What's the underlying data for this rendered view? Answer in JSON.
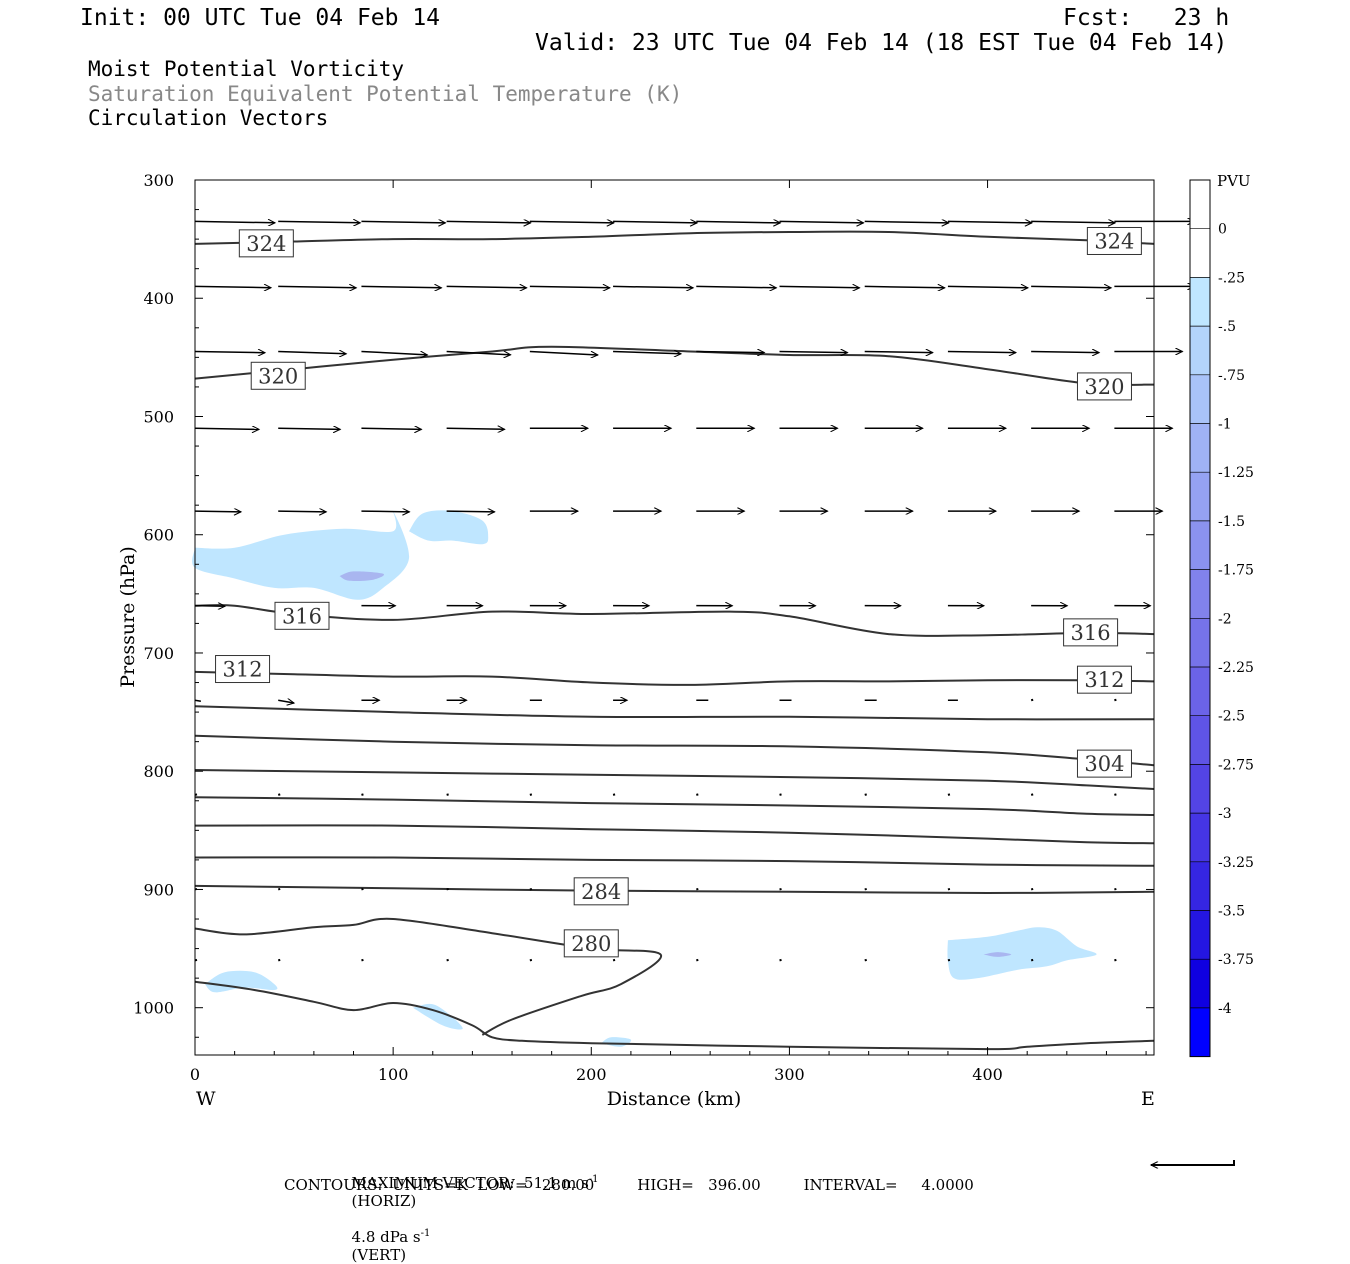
{
  "header": {
    "init": "Init: 00 UTC Tue 04 Feb 14",
    "fcst": "Fcst:   23 h",
    "valid": "Valid: 23 UTC Tue 04 Feb 14 (18 EST Tue 04 Feb 14)",
    "field1": "Moist Potential Vorticity",
    "field2": "Saturation Equivalent Potential Temperature (K)",
    "field3": "Circulation Vectors"
  },
  "colors": {
    "field2_text": "#888888",
    "contour": "#333333",
    "pv_fill_light": "#bfe6ff",
    "pv_fill_mid": "#a9b6f0"
  },
  "chart_data": {
    "type": "contour",
    "xlabel": "Distance (km)",
    "ylabel": "Pressure (hPa)",
    "xlim": [
      0,
      484
    ],
    "ylim": [
      300,
      1040
    ],
    "y_scale": "linear",
    "y_inverted": true,
    "x_ticks": [
      0,
      100,
      200,
      300,
      400
    ],
    "y_ticks": [
      300,
      400,
      500,
      600,
      700,
      800,
      900,
      1000
    ],
    "x_end_labels": {
      "left": "W",
      "right": "E"
    },
    "contour_labels": [
      {
        "text": "324",
        "x": 36,
        "p": 354
      },
      {
        "text": "324",
        "x": 464,
        "p": 352
      },
      {
        "text": "320",
        "x": 42,
        "p": 466
      },
      {
        "text": "320",
        "x": 459,
        "p": 475
      },
      {
        "text": "316",
        "x": 54,
        "p": 669
      },
      {
        "text": "316",
        "x": 452,
        "p": 683
      },
      {
        "text": "312",
        "x": 24,
        "p": 714
      },
      {
        "text": "312",
        "x": 459,
        "p": 723
      },
      {
        "text": "304",
        "x": 459,
        "p": 794
      },
      {
        "text": "284",
        "x": 205,
        "p": 902
      },
      {
        "text": "280",
        "x": 200,
        "p": 946
      }
    ],
    "contours": [
      {
        "level": 324,
        "points": [
          [
            0,
            354
          ],
          [
            50,
            352
          ],
          [
            100,
            350
          ],
          [
            150,
            350
          ],
          [
            200,
            348
          ],
          [
            250,
            345
          ],
          [
            300,
            344
          ],
          [
            350,
            344
          ],
          [
            400,
            348
          ],
          [
            450,
            351
          ],
          [
            484,
            354
          ]
        ]
      },
      {
        "level": 320,
        "points": [
          [
            0,
            468
          ],
          [
            50,
            460
          ],
          [
            100,
            452
          ],
          [
            150,
            445
          ],
          [
            180,
            441
          ],
          [
            250,
            445
          ],
          [
            300,
            448
          ],
          [
            350,
            449
          ],
          [
            400,
            460
          ],
          [
            450,
            472
          ],
          [
            484,
            473
          ]
        ]
      },
      {
        "level": 316,
        "points": [
          [
            0,
            660
          ],
          [
            20,
            660
          ],
          [
            50,
            667
          ],
          [
            100,
            672
          ],
          [
            150,
            665
          ],
          [
            200,
            667
          ],
          [
            270,
            665
          ],
          [
            300,
            669
          ],
          [
            350,
            684
          ],
          [
            400,
            685
          ],
          [
            450,
            683
          ],
          [
            484,
            684
          ]
        ]
      },
      {
        "level": 312,
        "points": [
          [
            0,
            716
          ],
          [
            50,
            718
          ],
          [
            100,
            720
          ],
          [
            150,
            720
          ],
          [
            200,
            725
          ],
          [
            250,
            727
          ],
          [
            300,
            724
          ],
          [
            350,
            724
          ],
          [
            400,
            723
          ],
          [
            450,
            723
          ],
          [
            484,
            724
          ]
        ]
      },
      {
        "level": 308,
        "points": [
          [
            0,
            745
          ],
          [
            100,
            750
          ],
          [
            200,
            754
          ],
          [
            300,
            754
          ],
          [
            400,
            756
          ],
          [
            484,
            756
          ]
        ]
      },
      {
        "level": 304,
        "points": [
          [
            0,
            770
          ],
          [
            100,
            775
          ],
          [
            200,
            778
          ],
          [
            300,
            779
          ],
          [
            400,
            784
          ],
          [
            450,
            790
          ],
          [
            484,
            795
          ]
        ]
      },
      {
        "level": 300,
        "points": [
          [
            0,
            799
          ],
          [
            100,
            801
          ],
          [
            200,
            803
          ],
          [
            300,
            805
          ],
          [
            400,
            808
          ],
          [
            450,
            812
          ],
          [
            484,
            815
          ]
        ]
      },
      {
        "level": 296,
        "points": [
          [
            0,
            822
          ],
          [
            100,
            824
          ],
          [
            200,
            827
          ],
          [
            300,
            829
          ],
          [
            400,
            832
          ],
          [
            450,
            836
          ],
          [
            484,
            837
          ]
        ]
      },
      {
        "level": 292,
        "points": [
          [
            0,
            846
          ],
          [
            100,
            846
          ],
          [
            200,
            849
          ],
          [
            300,
            852
          ],
          [
            400,
            857
          ],
          [
            450,
            860
          ],
          [
            484,
            861
          ]
        ]
      },
      {
        "level": 288,
        "points": [
          [
            0,
            873
          ],
          [
            100,
            873
          ],
          [
            200,
            875
          ],
          [
            300,
            876
          ],
          [
            400,
            879
          ],
          [
            484,
            880
          ]
        ]
      },
      {
        "level": 284,
        "points": [
          [
            0,
            897
          ],
          [
            100,
            899
          ],
          [
            200,
            901
          ],
          [
            300,
            902
          ],
          [
            400,
            903
          ],
          [
            484,
            902
          ]
        ]
      },
      {
        "level": 280,
        "points": [
          [
            0,
            933
          ],
          [
            25,
            938
          ],
          [
            60,
            932
          ],
          [
            80,
            930
          ],
          [
            100,
            925
          ],
          [
            150,
            937
          ],
          [
            200,
            950
          ],
          [
            235,
            955
          ],
          [
            215,
            980
          ],
          [
            195,
            990
          ],
          [
            160,
            1010
          ],
          [
            145,
            1023
          ]
        ]
      },
      {
        "level": 280,
        "points": [
          [
            0,
            978
          ],
          [
            30,
            985
          ],
          [
            60,
            995
          ],
          [
            80,
            1002
          ],
          [
            100,
            996
          ],
          [
            120,
            1002
          ],
          [
            140,
            1015
          ],
          [
            150,
            1025
          ],
          [
            165,
            1028
          ],
          [
            200,
            1030
          ],
          [
            300,
            1033
          ],
          [
            400,
            1035
          ],
          [
            420,
            1033
          ],
          [
            450,
            1030
          ],
          [
            484,
            1028
          ]
        ]
      }
    ],
    "pv_regions": [
      {
        "level": "-0.25",
        "points": [
          [
            0,
            611
          ],
          [
            20,
            611
          ],
          [
            45,
            600
          ],
          [
            75,
            595
          ],
          [
            100,
            597
          ],
          [
            100,
            580
          ],
          [
            108,
            620
          ],
          [
            95,
            645
          ],
          [
            82,
            655
          ],
          [
            60,
            645
          ],
          [
            40,
            645
          ],
          [
            20,
            637
          ],
          [
            0,
            628
          ]
        ]
      },
      {
        "level": "-0.25",
        "points": [
          [
            108,
            597
          ],
          [
            115,
            582
          ],
          [
            130,
            580
          ],
          [
            145,
            588
          ],
          [
            148,
            602
          ],
          [
            145,
            608
          ],
          [
            130,
            605
          ],
          [
            118,
            605
          ]
        ]
      },
      {
        "level": "-0.5",
        "points": [
          [
            73,
            635
          ],
          [
            80,
            631
          ],
          [
            95,
            633
          ],
          [
            90,
            638
          ],
          [
            78,
            639
          ]
        ]
      },
      {
        "level": "-0.25",
        "points": [
          [
            380,
            943
          ],
          [
            400,
            940
          ],
          [
            415,
            935
          ],
          [
            425,
            932
          ],
          [
            435,
            935
          ],
          [
            445,
            948
          ],
          [
            455,
            955
          ],
          [
            440,
            960
          ],
          [
            430,
            965
          ],
          [
            415,
            968
          ],
          [
            395,
            975
          ],
          [
            383,
            975
          ],
          [
            380,
            960
          ]
        ]
      },
      {
        "level": "-0.5",
        "points": [
          [
            398,
            955
          ],
          [
            405,
            953
          ],
          [
            412,
            955
          ],
          [
            405,
            957
          ]
        ]
      },
      {
        "level": "-0.25",
        "points": [
          [
            5,
            980
          ],
          [
            15,
            970
          ],
          [
            30,
            970
          ],
          [
            40,
            980
          ],
          [
            40,
            985
          ],
          [
            25,
            983
          ],
          [
            10,
            987
          ]
        ]
      },
      {
        "level": "-0.25",
        "points": [
          [
            110,
            1000
          ],
          [
            120,
            997
          ],
          [
            130,
            1008
          ],
          [
            135,
            1018
          ],
          [
            125,
            1015
          ]
        ]
      },
      {
        "level": "-0.25",
        "points": [
          [
            205,
            1030
          ],
          [
            210,
            1025
          ],
          [
            220,
            1027
          ],
          [
            215,
            1033
          ]
        ]
      }
    ],
    "vectors": {
      "x": [
        0,
        42,
        84,
        127,
        169,
        211,
        253,
        295,
        338,
        380,
        422,
        464
      ],
      "p": [
        335,
        390,
        445,
        510,
        580,
        660,
        740,
        820,
        900,
        960
      ],
      "u": [
        [
          40,
          41,
          42,
          42,
          42,
          42,
          42,
          42,
          42,
          42,
          42,
          40
        ],
        [
          38,
          39,
          40,
          40,
          40,
          40,
          40,
          40,
          40,
          40,
          40,
          40
        ],
        [
          35,
          34,
          33,
          32,
          34,
          34,
          34,
          34,
          34,
          34,
          34,
          34
        ],
        [
          32,
          31,
          30,
          29,
          29,
          29,
          29,
          29,
          29,
          29,
          29,
          29
        ],
        [
          23,
          24,
          24,
          24,
          24,
          24,
          24,
          24,
          24,
          24,
          24,
          24
        ],
        [
          15,
          17,
          17,
          18,
          18,
          18,
          18,
          18,
          18,
          18,
          18,
          18
        ],
        [
          3,
          8,
          9,
          10,
          6,
          7,
          6,
          6,
          6,
          5,
          0,
          0
        ],
        [
          0,
          0,
          0,
          0,
          0,
          0,
          0,
          0,
          0,
          0,
          0,
          0
        ],
        [
          0,
          0,
          0,
          0,
          0,
          0,
          0,
          0,
          0,
          0,
          0,
          0
        ],
        [
          0,
          0,
          0,
          0,
          0,
          0,
          0,
          0,
          0,
          0,
          0,
          0
        ]
      ],
      "angle_deg": [
        [
          -1,
          -1,
          -1,
          -1,
          -1,
          -1,
          -1,
          -1,
          -1,
          -1,
          -1,
          0
        ],
        [
          -1,
          -1,
          -1,
          -1,
          -1,
          -1,
          -1,
          -1,
          -1,
          -1,
          -1,
          0
        ],
        [
          -1,
          -2,
          -3,
          -3,
          -3,
          -2,
          -1,
          -1,
          -1,
          -1,
          -1,
          0
        ],
        [
          -1,
          -1,
          -1,
          -1,
          0,
          0,
          0,
          0,
          0,
          0,
          0,
          0
        ],
        [
          -1,
          -1,
          -1,
          -1,
          0,
          0,
          0,
          0,
          0,
          0,
          0,
          0
        ],
        [
          -1,
          -1,
          0,
          0,
          0,
          0,
          0,
          0,
          0,
          0,
          0,
          0
        ],
        [
          -10,
          -10,
          0,
          0,
          0,
          0,
          0,
          0,
          0,
          0,
          0,
          0
        ],
        [
          0,
          0,
          0,
          0,
          0,
          0,
          0,
          0,
          0,
          0,
          0,
          0
        ],
        [
          0,
          0,
          0,
          0,
          0,
          0,
          0,
          0,
          0,
          0,
          0,
          0
        ],
        [
          0,
          0,
          0,
          0,
          0,
          0,
          0,
          0,
          0,
          0,
          0,
          0
        ]
      ]
    },
    "colorbar": {
      "label": "PVU",
      "tick_labels": [
        "0",
        "-.25",
        "-.5",
        "-.75",
        "-1",
        "-1.25",
        "-1.5",
        "-1.75",
        "-2",
        "-2.25",
        "-2.5",
        "-2.75",
        "-3",
        "-3.25",
        "-3.5",
        "-3.75",
        "-4"
      ],
      "colors": [
        "#ffffff",
        "#ffffff",
        "#bfe6ff",
        "#b3d4fb",
        "#a9c3f8",
        "#9fb2f5",
        "#95a2f2",
        "#8b92ef",
        "#8182ec",
        "#7673ea",
        "#6b63e8",
        "#5f54e6",
        "#5344e5",
        "#4535e4",
        "#3526e3",
        "#2416e2",
        "#0f00e0",
        "#0000ff"
      ]
    },
    "footer": {
      "max_vector": "MAXIMUM VECTOR:  51.1 m s",
      "max_vector_unit_sup": "-1",
      "horiz": "(HORIZ)",
      "vert_val": "4.8 dPa s",
      "vert_sup": "-1",
      "vert": "(VERT)",
      "contours": "CONTOURS:  UNITS=K  LOW=   280.00         HIGH=   396.00         INTERVAL=     4.0000"
    }
  }
}
